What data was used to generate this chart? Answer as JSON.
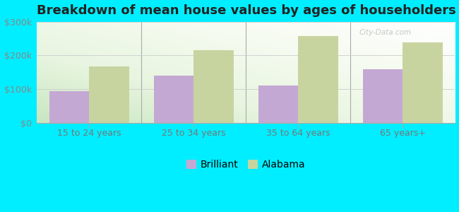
{
  "title": "Breakdown of mean house values by ages of householders",
  "categories": [
    "15 to 24 years",
    "25 to 34 years",
    "35 to 64 years",
    "65 years+"
  ],
  "brilliant_values": [
    93000,
    140000,
    110000,
    158000
  ],
  "alabama_values": [
    168000,
    215000,
    258000,
    238000
  ],
  "brilliant_color": "#c4a8d4",
  "alabama_color": "#c8d4a0",
  "background_color": "#00eeff",
  "ylim": [
    0,
    300000
  ],
  "yticks": [
    0,
    100000,
    200000,
    300000
  ],
  "ytick_labels": [
    "$0",
    "$100k",
    "$200k",
    "$300k"
  ],
  "legend_labels": [
    "Brilliant",
    "Alabama"
  ],
  "bar_width": 0.38,
  "title_fontsize": 13,
  "tick_fontsize": 9,
  "legend_fontsize": 10,
  "watermark": "City-Data.com"
}
